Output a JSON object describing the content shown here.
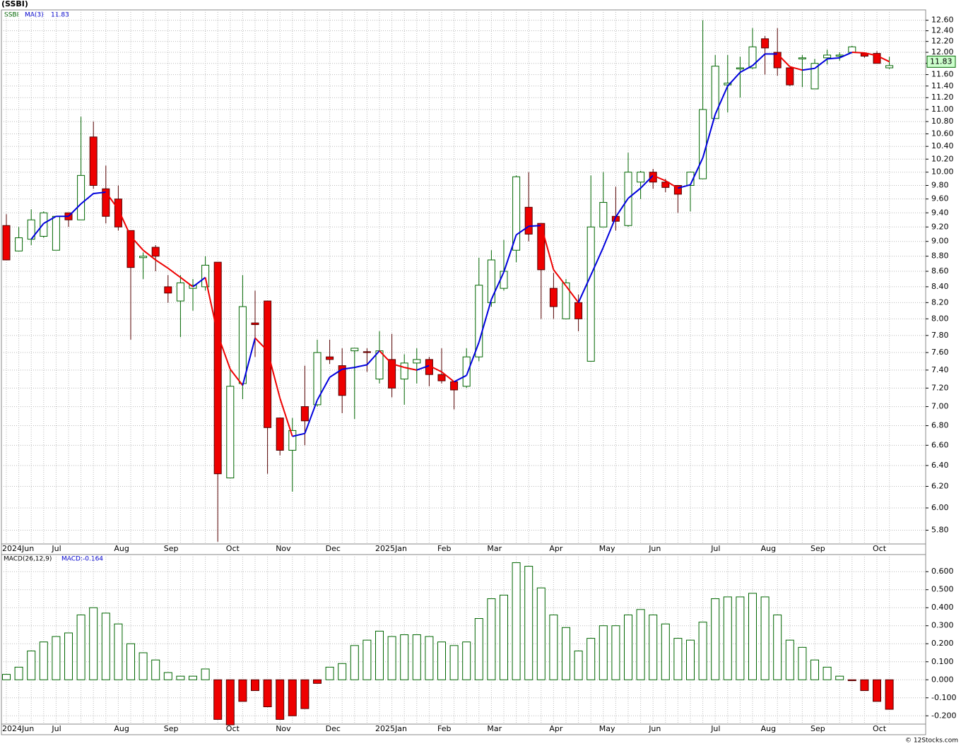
{
  "chart_data": [
    {
      "type": "candlestick",
      "title": "(SSBI)",
      "symbol": "SSBI",
      "categories": [
        "2024Jun",
        null,
        null,
        null,
        "Jul",
        null,
        null,
        null,
        null,
        "Aug",
        null,
        null,
        null,
        "Sep",
        null,
        null,
        null,
        null,
        "Oct",
        null,
        null,
        null,
        "Nov",
        null,
        null,
        null,
        "Dec",
        null,
        null,
        null,
        "2025Jan",
        null,
        null,
        null,
        null,
        "Feb",
        null,
        null,
        null,
        "Mar",
        null,
        null,
        null,
        null,
        "Apr",
        null,
        null,
        null,
        "May",
        null,
        null,
        null,
        "Jun",
        null,
        null,
        null,
        null,
        "Jul",
        null,
        null,
        null,
        "Aug",
        null,
        null,
        null,
        "Sep",
        null,
        null,
        null,
        null,
        "Oct",
        null
      ],
      "open": [
        9.22,
        8.87,
        9.03,
        9.07,
        8.88,
        9.4,
        9.3,
        10.55,
        9.75,
        9.6,
        9.15,
        8.78,
        8.92,
        8.4,
        8.22,
        8.38,
        8.4,
        8.72,
        6.28,
        7.25,
        7.95,
        8.22,
        6.88,
        6.55,
        7.0,
        7.02,
        7.55,
        7.45,
        7.62,
        7.61,
        7.3,
        7.52,
        7.3,
        7.48,
        7.52,
        7.35,
        7.27,
        7.22,
        7.55,
        8.2,
        8.38,
        8.88,
        9.48,
        9.25,
        8.38,
        8.0,
        8.2,
        7.5,
        9.2,
        9.35,
        9.22,
        9.85,
        10.0,
        9.85,
        9.8,
        9.8,
        9.9,
        10.85,
        11.42,
        11.7,
        11.72,
        12.25,
        12.0,
        11.72,
        11.88,
        11.35,
        11.9,
        11.93,
        12.0,
        11.98,
        11.98,
        11.72
      ],
      "high": [
        9.38,
        9.2,
        9.45,
        9.42,
        9.35,
        9.4,
        10.88,
        10.8,
        10.1,
        9.8,
        9.15,
        8.85,
        8.95,
        8.55,
        8.55,
        8.5,
        8.8,
        8.72,
        7.4,
        8.55,
        8.35,
        8.22,
        6.88,
        6.88,
        7.45,
        7.75,
        7.75,
        7.65,
        7.65,
        7.65,
        7.85,
        7.82,
        7.58,
        7.65,
        7.55,
        7.65,
        7.27,
        7.65,
        8.78,
        8.88,
        9.02,
        9.95,
        10.0,
        9.25,
        8.58,
        8.5,
        8.3,
        9.95,
        10.0,
        9.78,
        10.3,
        10.02,
        10.05,
        9.9,
        9.8,
        10.0,
        12.6,
        11.95,
        11.95,
        11.92,
        12.45,
        12.3,
        12.45,
        11.72,
        11.95,
        11.88,
        12.05,
        12.0,
        12.12,
        12.0,
        12.02,
        11.92
      ],
      "low": [
        8.75,
        8.87,
        8.95,
        9.05,
        8.88,
        9.2,
        9.3,
        9.75,
        9.25,
        9.15,
        7.75,
        8.5,
        8.6,
        8.2,
        7.78,
        8.1,
        8.35,
        5.7,
        6.28,
        7.08,
        7.55,
        6.32,
        6.5,
        6.15,
        6.6,
        7.0,
        7.47,
        6.93,
        6.87,
        7.38,
        7.25,
        7.1,
        7.02,
        7.25,
        7.22,
        7.25,
        6.97,
        7.2,
        7.5,
        8.15,
        8.35,
        8.72,
        9.0,
        8.0,
        8.0,
        8.0,
        7.85,
        7.5,
        9.2,
        9.15,
        9.2,
        9.6,
        9.75,
        9.7,
        9.4,
        9.42,
        9.9,
        10.85,
        10.95,
        11.2,
        11.7,
        11.6,
        11.58,
        11.4,
        11.38,
        11.35,
        11.78,
        11.85,
        11.98,
        11.9,
        11.8,
        11.7
      ],
      "close": [
        8.75,
        9.05,
        9.3,
        9.4,
        9.35,
        9.3,
        9.95,
        9.8,
        9.35,
        9.2,
        8.65,
        8.8,
        8.8,
        8.32,
        8.45,
        8.42,
        8.68,
        6.32,
        7.22,
        8.15,
        7.93,
        6.78,
        6.55,
        6.75,
        6.85,
        7.6,
        7.52,
        7.12,
        7.65,
        7.6,
        7.62,
        7.2,
        7.48,
        7.52,
        7.35,
        7.28,
        7.18,
        7.55,
        8.42,
        8.75,
        8.6,
        9.93,
        9.1,
        8.62,
        8.15,
        8.45,
        8.0,
        9.2,
        9.55,
        9.28,
        10.0,
        10.0,
        9.85,
        9.77,
        9.67,
        10.0,
        11.0,
        11.75,
        11.45,
        11.72,
        12.1,
        12.08,
        11.72,
        11.42,
        11.9,
        11.8,
        11.95,
        11.95,
        12.1,
        11.93,
        11.8,
        11.76
      ],
      "up_color": "#006600",
      "down_color": "#ee0000",
      "ma": {
        "name": "MA(3)",
        "rising_color": "#0000dd",
        "falling_color": "#ee0000",
        "values": [
          null,
          null,
          9.03,
          9.25,
          9.35,
          9.35,
          9.53,
          9.68,
          9.7,
          9.45,
          9.07,
          8.88,
          8.75,
          8.64,
          8.52,
          8.4,
          8.52,
          7.81,
          7.41,
          7.23,
          7.77,
          7.62,
          7.09,
          6.69,
          6.72,
          7.07,
          7.32,
          7.41,
          7.43,
          7.46,
          7.62,
          7.47,
          7.43,
          7.4,
          7.45,
          7.38,
          7.27,
          7.34,
          7.72,
          8.24,
          8.59,
          9.09,
          9.21,
          9.22,
          8.62,
          8.41,
          8.2,
          8.55,
          8.92,
          9.34,
          9.61,
          9.76,
          9.95,
          9.87,
          9.76,
          9.81,
          10.22,
          10.92,
          11.4,
          11.64,
          11.76,
          11.97,
          11.97,
          11.74,
          11.68,
          11.71,
          11.88,
          11.9,
          12.0,
          11.99,
          11.94,
          11.83
        ]
      },
      "log_scale": true,
      "grid": true,
      "ylim": [
        5.68,
        12.8
      ],
      "yticks": [
        {
          "value": 12.6,
          "label": "12.60"
        },
        {
          "value": 12.4,
          "label": "12.40"
        },
        {
          "value": 12.2,
          "label": "12.20"
        },
        {
          "value": 12,
          "label": "12.00"
        },
        {
          "value": 11.8,
          "label": "11.80"
        },
        {
          "value": 11.6,
          "label": "11.60"
        },
        {
          "value": 11.4,
          "label": "11.40"
        },
        {
          "value": 11.2,
          "label": "11.20"
        },
        {
          "value": 11,
          "label": "11.00"
        },
        {
          "value": 10.8,
          "label": "10.80"
        },
        {
          "value": 10.6,
          "label": "10.60"
        },
        {
          "value": 10.4,
          "label": "10.40"
        },
        {
          "value": 10.2,
          "label": "10.20"
        },
        {
          "value": 10,
          "label": "10.00"
        },
        {
          "value": 9.8,
          "label": "9.80"
        },
        {
          "value": 9.6,
          "label": "9.60"
        },
        {
          "value": 9.4,
          "label": "9.40"
        },
        {
          "value": 9.2,
          "label": "9.20"
        },
        {
          "value": 9,
          "label": "9.00"
        },
        {
          "value": 8.8,
          "label": "8.80"
        },
        {
          "value": 8.6,
          "label": "8.60"
        },
        {
          "value": 8.4,
          "label": "8.40"
        },
        {
          "value": 8.2,
          "label": "8.20"
        },
        {
          "value": 8,
          "label": "8.00"
        },
        {
          "value": 7.8,
          "label": "7.80"
        },
        {
          "value": 7.6,
          "label": "7.60"
        },
        {
          "value": 7.4,
          "label": "7.40"
        },
        {
          "value": 7.2,
          "label": "7.20"
        },
        {
          "value": 7,
          "label": "7.00"
        },
        {
          "value": 6.8,
          "label": "6.80"
        },
        {
          "value": 6.6,
          "label": "6.60"
        },
        {
          "value": 6.4,
          "label": "6.40"
        },
        {
          "value": 6.2,
          "label": "6.20"
        },
        {
          "value": 6,
          "label": "6.00"
        },
        {
          "value": 5.8,
          "label": "5.80"
        }
      ]
    },
    {
      "type": "bar",
      "title": "MACD(26,12,9)",
      "value_text": "MACD:-0.164",
      "series": [
        {
          "name": "MACD",
          "positive_color": "#006600",
          "negative_color": "#ee0000",
          "values": [
            0.03,
            0.07,
            0.16,
            0.21,
            0.24,
            0.26,
            0.36,
            0.4,
            0.37,
            0.31,
            0.2,
            0.15,
            0.11,
            0.04,
            0.02,
            0.02,
            0.06,
            -0.22,
            -0.25,
            -0.12,
            -0.06,
            -0.15,
            -0.22,
            -0.2,
            -0.16,
            -0.02,
            0.07,
            0.09,
            0.19,
            0.22,
            0.27,
            0.24,
            0.25,
            0.25,
            0.24,
            0.21,
            0.19,
            0.21,
            0.34,
            0.45,
            0.47,
            0.65,
            0.63,
            0.51,
            0.36,
            0.29,
            0.16,
            0.23,
            0.3,
            0.3,
            0.36,
            0.39,
            0.36,
            0.31,
            0.23,
            0.22,
            0.32,
            0.45,
            0.46,
            0.46,
            0.48,
            0.46,
            0.36,
            0.22,
            0.18,
            0.11,
            0.07,
            0.02,
            -0.005,
            -0.06,
            -0.12,
            -0.164
          ]
        }
      ],
      "grid": true,
      "ylim": [
        -0.246,
        0.695
      ],
      "yticks": [
        {
          "value": 0.6,
          "label": "0.600"
        },
        {
          "value": 0.5,
          "label": "0.500"
        },
        {
          "value": 0.4,
          "label": "0.400"
        },
        {
          "value": 0.3,
          "label": "0.300"
        },
        {
          "value": 0.2,
          "label": "0.200"
        },
        {
          "value": 0.1,
          "label": "0.100"
        },
        {
          "value": 0,
          "label": "0.000"
        },
        {
          "value": -0.1,
          "label": "-0.100"
        },
        {
          "value": -0.2,
          "label": "-0.200"
        }
      ]
    }
  ],
  "footer": "© 12Stocks.com"
}
